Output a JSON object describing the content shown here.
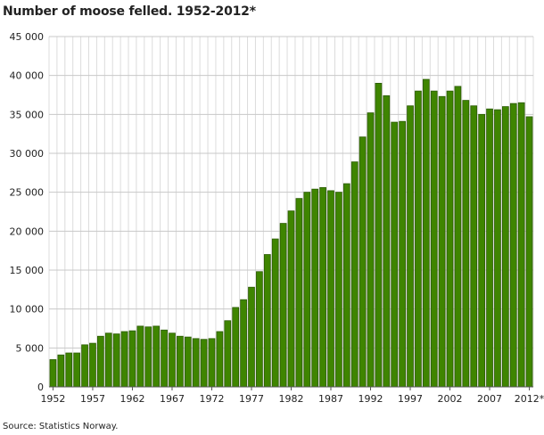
{
  "chart_data": {
    "type": "bar",
    "title": "Number of moose felled. 1952-2012*",
    "xlabel": "",
    "ylabel": "",
    "ylim": [
      0,
      45000
    ],
    "yticks": [
      0,
      5000,
      10000,
      15000,
      20000,
      25000,
      30000,
      35000,
      40000,
      45000
    ],
    "ytick_labels": [
      "0",
      "5 000",
      "10 000",
      "15 000",
      "20 000",
      "25 000",
      "30 000",
      "35 000",
      "40 000",
      "45 000"
    ],
    "xtick_labels": [
      "1952",
      "1957",
      "1962",
      "1967",
      "1972",
      "1977",
      "1982",
      "1987",
      "1992",
      "1997",
      "2002",
      "2007",
      "2012*"
    ],
    "categories": [
      "1952",
      "1953",
      "1954",
      "1955",
      "1956",
      "1957",
      "1958",
      "1959",
      "1960",
      "1961",
      "1962",
      "1963",
      "1964",
      "1965",
      "1966",
      "1967",
      "1968",
      "1969",
      "1970",
      "1971",
      "1972",
      "1973",
      "1974",
      "1975",
      "1976",
      "1977",
      "1978",
      "1979",
      "1980",
      "1981",
      "1982",
      "1983",
      "1984",
      "1985",
      "1986",
      "1987",
      "1988",
      "1989",
      "1990",
      "1991",
      "1992",
      "1993",
      "1994",
      "1995",
      "1996",
      "1997",
      "1998",
      "1999",
      "2000",
      "2001",
      "2002",
      "2003",
      "2004",
      "2005",
      "2006",
      "2007",
      "2008",
      "2009",
      "2010",
      "2011",
      "2012*"
    ],
    "values": [
      3500,
      4100,
      4350,
      4350,
      5400,
      5600,
      6500,
      6900,
      6800,
      7100,
      7200,
      7800,
      7700,
      7800,
      7300,
      6900,
      6500,
      6400,
      6200,
      6100,
      6200,
      7100,
      8500,
      10200,
      11200,
      12800,
      14800,
      17000,
      19000,
      21000,
      22600,
      24200,
      25000,
      25400,
      25600,
      25200,
      25000,
      26100,
      28900,
      32100,
      35200,
      39000,
      37400,
      34000,
      34100,
      36100,
      38000,
      39500,
      38000,
      37300,
      38000,
      38600,
      36800,
      36100,
      35000,
      35700,
      35600,
      36000,
      36400,
      36500,
      34700
    ],
    "grid": true,
    "legend": "none",
    "bar_color": "#3f8500",
    "source": "Source: Statistics Norway."
  }
}
